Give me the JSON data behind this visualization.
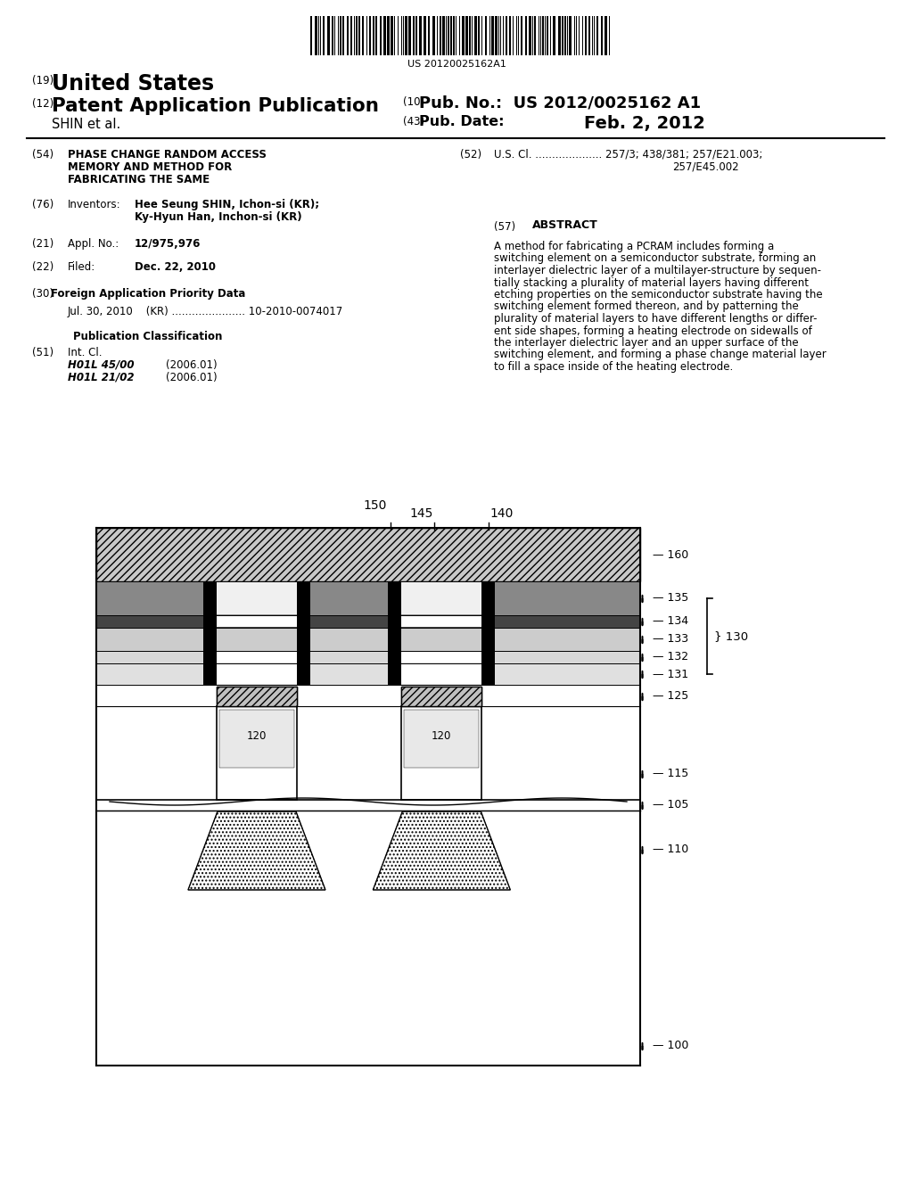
{
  "bg_color": "#ffffff",
  "barcode_number": "US 20120025162A1",
  "country_num": "(19)",
  "country": "United States",
  "pub_type_num": "(12)",
  "pub_type": "Patent Application Publication",
  "inventors_line": "SHIN et al.",
  "pub_no_num": "(10)",
  "pub_no_label": "Pub. No.:",
  "pub_no_val": "US 2012/0025162 A1",
  "pub_date_num": "(43)",
  "pub_date_label": "Pub. Date:",
  "pub_date_val": "Feb. 2, 2012",
  "f54_num": "(54)",
  "f54_lines": [
    "PHASE CHANGE RANDOM ACCESS",
    "MEMORY AND METHOD FOR",
    "FABRICATING THE SAME"
  ],
  "f76_num": "(76)",
  "f76_label": "Inventors:",
  "f76_inv1": "Hee Seung SHIN, Ichon-si (KR);",
  "f76_inv2": "Ky-Hyun Han, Inchon-si (KR)",
  "f21_num": "(21)",
  "f21_label": "Appl. No.:",
  "f21_val": "12/975,976",
  "f22_num": "(22)",
  "f22_label": "Filed:",
  "f22_val": "Dec. 22, 2010",
  "f30_num": "(30)",
  "f30_title": "Foreign Application Priority Data",
  "f30_val": "Jul. 30, 2010    (KR) ...................... 10-2010-0074017",
  "pub_class_title": "Publication Classification",
  "f51_num": "(51)",
  "f51_label": "Int. Cl.",
  "f51_c1": "H01L 45/00",
  "f51_c1y": "(2006.01)",
  "f51_c2": "H01L 21/02",
  "f51_c2y": "(2006.01)",
  "f52_num": "(52)",
  "f52_text": "U.S. Cl. .................... 257/3; 438/381; 257/E21.003;",
  "f52_text2": "257/E45.002",
  "f57_num": "(57)",
  "f57_title": "ABSTRACT",
  "abstract_lines": [
    "A method for fabricating a PCRAM includes forming a",
    "switching element on a semiconductor substrate, forming an",
    "interlayer dielectric layer of a multilayer-structure by sequen-",
    "tially stacking a plurality of material layers having different",
    "etching properties on the semiconductor substrate having the",
    "switching element formed thereon, and by patterning the",
    "plurality of material layers to have different lengths or differ-",
    "ent side shapes, forming a heating electrode on sidewalls of",
    "the interlayer dielectric layer and an upper surface of the",
    "switching element, and forming a phase change material layer",
    "to fill a space inside of the heating electrode."
  ]
}
